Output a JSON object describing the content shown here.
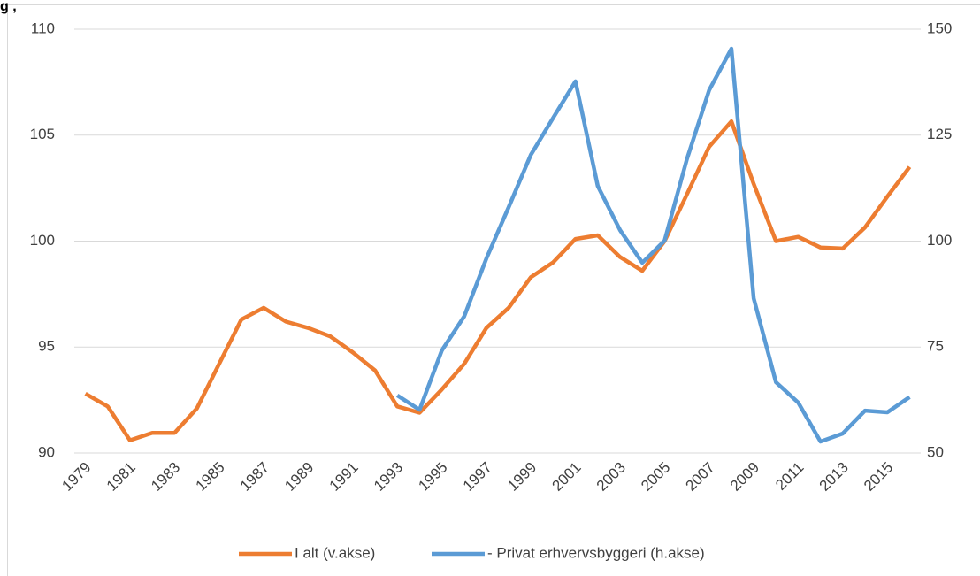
{
  "chart_data": {
    "type": "line",
    "title": "g ,",
    "x": [
      1979,
      1980,
      1981,
      1982,
      1983,
      1984,
      1985,
      1986,
      1987,
      1988,
      1989,
      1990,
      1991,
      1992,
      1993,
      1994,
      1995,
      1996,
      1997,
      1998,
      1999,
      2000,
      2001,
      2002,
      2003,
      2004,
      2005,
      2006,
      2007,
      2008,
      2009,
      2010,
      2011,
      2012,
      2013,
      2014,
      2015,
      2016
    ],
    "xlim": [
      1978.5,
      2016.5
    ],
    "xticks": [
      1979,
      1981,
      1983,
      1985,
      1987,
      1989,
      1991,
      1993,
      1995,
      1997,
      1999,
      2001,
      2003,
      2005,
      2007,
      2009,
      2011,
      2013,
      2015
    ],
    "ylim": [
      90,
      110
    ],
    "yticks": [
      90,
      95,
      100,
      105,
      110
    ],
    "y2lim": [
      50,
      150
    ],
    "y2ticks": [
      50,
      75,
      100,
      125,
      150
    ],
    "grid": true,
    "legend": "bottom",
    "series": [
      {
        "name": "I alt (v.akse)",
        "color": "#ed7d31",
        "values": [
          92.8,
          92.2,
          90.6,
          90.95,
          90.95,
          92.1,
          94.2,
          96.3,
          96.85,
          96.2,
          95.9,
          95.5,
          94.75,
          93.9,
          92.2,
          91.9,
          93.0,
          94.2,
          95.9,
          96.85,
          98.3,
          99.0,
          100.1,
          100.27,
          99.25,
          98.6,
          100.0,
          102.2,
          104.45,
          105.65,
          102.7,
          100.0,
          100.2,
          99.7,
          99.65,
          100.65,
          102.1,
          103.5
        ]
      },
      {
        "name": "- Privat erhvervsbyggeri (h.akse)",
        "color": "#5b9bd5",
        "axis": "y2",
        "values": [
          null,
          null,
          null,
          null,
          null,
          null,
          null,
          null,
          null,
          null,
          null,
          null,
          null,
          null,
          63.6,
          60.2,
          74.2,
          82.2,
          95.9,
          108.0,
          120.4,
          129.1,
          137.7,
          113.0,
          102.6,
          94.9,
          100.1,
          119.3,
          135.6,
          145.4,
          86.5,
          66.7,
          61.9,
          52.7,
          54.6,
          60.0,
          59.6,
          63.2
        ]
      }
    ]
  }
}
